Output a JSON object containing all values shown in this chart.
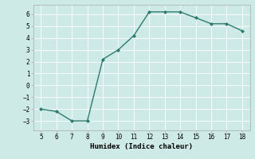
{
  "x": [
    5,
    6,
    7,
    8,
    9,
    10,
    11,
    12,
    13,
    14,
    15,
    16,
    17,
    18
  ],
  "y": [
    -2.0,
    -2.2,
    -3.0,
    -3.0,
    2.2,
    3.0,
    4.2,
    6.2,
    6.2,
    6.2,
    5.7,
    5.2,
    5.2,
    4.6
  ],
  "line_color": "#2d7a6e",
  "marker": "D",
  "markersize": 2.0,
  "linewidth": 1.0,
  "xlabel": "Humidex (Indice chaleur)",
  "xlim": [
    4.5,
    18.5
  ],
  "ylim": [
    -3.8,
    6.8
  ],
  "xticks": [
    5,
    6,
    7,
    8,
    9,
    10,
    11,
    12,
    13,
    14,
    15,
    16,
    17,
    18
  ],
  "yticks": [
    -3,
    -2,
    -1,
    0,
    1,
    2,
    3,
    4,
    5,
    6
  ],
  "bg_color": "#ceeae6",
  "grid_color": "#ffffff",
  "grid_lw": 0.6,
  "tick_fontsize": 5.5,
  "label_fontsize": 6.5,
  "spine_color": "#aaaaaa",
  "spine_lw": 0.5
}
